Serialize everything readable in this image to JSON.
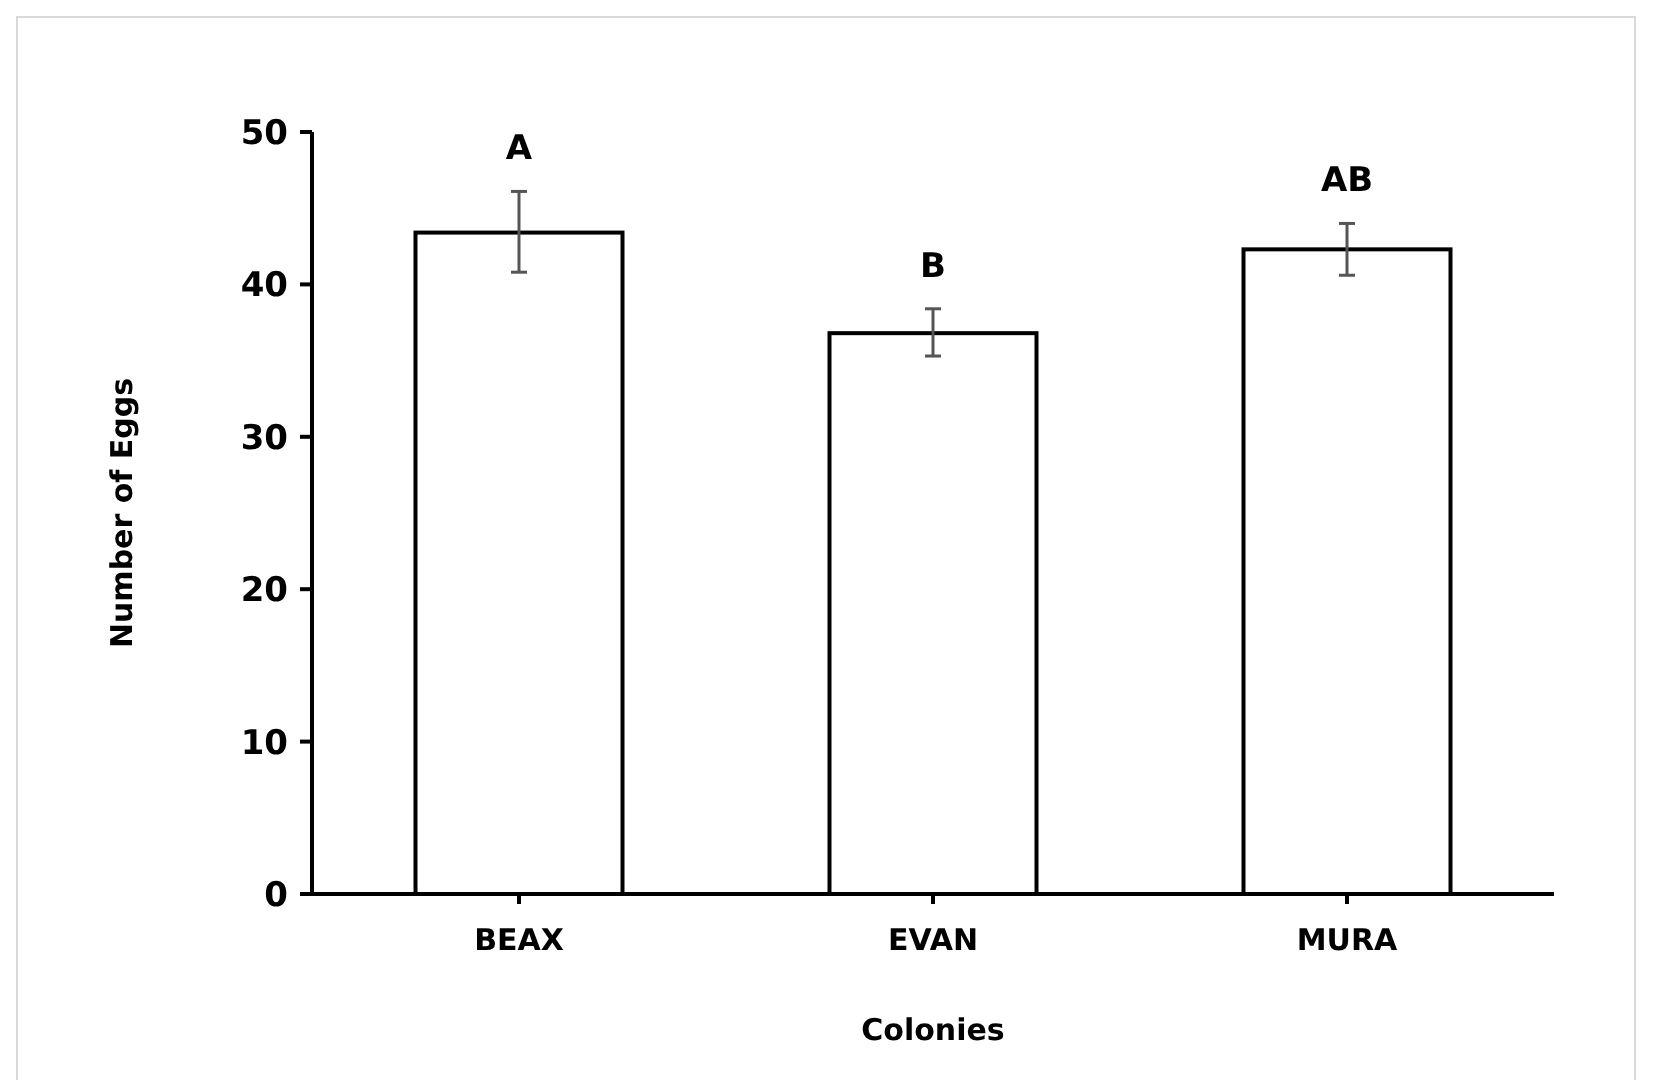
{
  "chart_data": {
    "type": "bar",
    "xlabel": "Colonies",
    "ylabel": "Number of Eggs",
    "categories": [
      "BEAX",
      "EVAN",
      "MURA"
    ],
    "values": [
      43.4,
      36.8,
      42.3
    ],
    "errors": [
      [
        40.8,
        46.1
      ],
      [
        35.3,
        38.4
      ],
      [
        40.6,
        44.0
      ]
    ],
    "color": "#ffffff",
    "ylim": [
      0,
      50
    ],
    "yticks": [
      0,
      10,
      20,
      30,
      40,
      50
    ],
    "grid": false,
    "annotations": [
      {
        "text": "A",
        "x": "BEAX",
        "y": 46.1
      },
      {
        "text": "B",
        "x": "EVAN",
        "y": 38.4
      },
      {
        "text": "AB",
        "x": "MURA",
        "y": 44.0
      }
    ]
  }
}
